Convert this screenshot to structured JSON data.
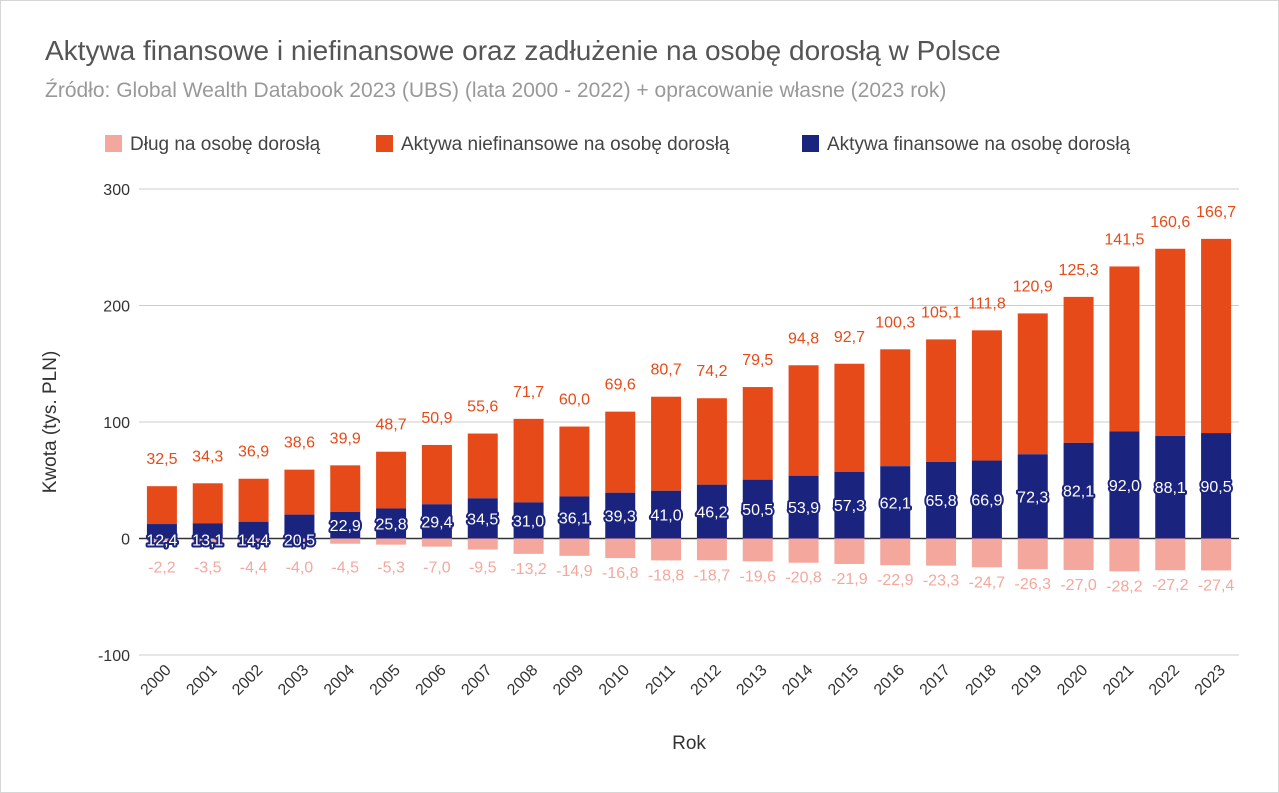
{
  "chart_data": {
    "type": "bar",
    "stacked": true,
    "title": "Aktywa finansowe i niefinansowe oraz zadłużenie na osobę dorosłą w Polsce",
    "subtitle": "Źródło: Global Wealth Databook 2023 (UBS) (lata 2000 - 2022) + opracowanie własne (2023 rok)",
    "xlabel": "Rok",
    "ylabel": "Kwota (tys. PLN)",
    "ylim": [
      -100,
      300
    ],
    "yticks": [
      300,
      200,
      100,
      0,
      -100
    ],
    "grid": true,
    "legend_position": "top",
    "categories": [
      "2000",
      "2001",
      "2002",
      "2003",
      "2004",
      "2005",
      "2006",
      "2007",
      "2008",
      "2009",
      "2010",
      "2011",
      "2012",
      "2013",
      "2014",
      "2015",
      "2016",
      "2017",
      "2018",
      "2019",
      "2020",
      "2021",
      "2022",
      "2023"
    ],
    "series": [
      {
        "name": "Dług na osobę dorosłą",
        "color": "#f4a79d",
        "values": [
          -2.2,
          -3.5,
          -4.4,
          -4.0,
          -4.5,
          -5.3,
          -7.0,
          -9.5,
          -13.2,
          -14.9,
          -16.8,
          -18.8,
          -18.7,
          -19.6,
          -20.8,
          -21.9,
          -22.9,
          -23.3,
          -24.7,
          -26.3,
          -27.0,
          -28.2,
          -27.2,
          -27.4
        ],
        "labels": [
          "-2,2",
          "-3,5",
          "-4,4",
          "-4,0",
          "-4,5",
          "-5,3",
          "-7,0",
          "-9,5",
          "-13,2",
          "-14,9",
          "-16,8",
          "-18,8",
          "-18,7",
          "-19,6",
          "-20,8",
          "-21,9",
          "-22,9",
          "-23,3",
          "-24,7",
          "-26,3",
          "-27,0",
          "-28,2",
          "-27,2",
          "-27,4"
        ]
      },
      {
        "name": "Aktywa niefinansowe na osobę dorosłą",
        "color": "#e64a19",
        "values": [
          32.5,
          34.3,
          36.9,
          38.6,
          39.9,
          48.7,
          50.9,
          55.6,
          71.7,
          60.0,
          69.6,
          80.7,
          74.2,
          79.5,
          94.8,
          92.7,
          100.3,
          105.1,
          111.8,
          120.9,
          125.3,
          141.5,
          160.6,
          166.7
        ],
        "labels": [
          "32,5",
          "34,3",
          "36,9",
          "38,6",
          "39,9",
          "48,7",
          "50,9",
          "55,6",
          "71,7",
          "60,0",
          "69,6",
          "80,7",
          "74,2",
          "79,5",
          "94,8",
          "92,7",
          "100,3",
          "105,1",
          "111,8",
          "120,9",
          "125,3",
          "141,5",
          "160,6",
          "166,7"
        ]
      },
      {
        "name": "Aktywa finansowe na osobę dorosłą",
        "color": "#1a237e",
        "values": [
          12.4,
          13.1,
          14.4,
          20.5,
          22.9,
          25.8,
          29.4,
          34.5,
          31.0,
          36.1,
          39.3,
          41.0,
          46.2,
          50.5,
          53.9,
          57.3,
          62.1,
          65.8,
          66.9,
          72.3,
          82.1,
          92.0,
          88.1,
          90.5
        ],
        "labels": [
          "12,4",
          "13,1",
          "14,4",
          "20,5",
          "22,9",
          "25,8",
          "29,4",
          "34,5",
          "31,0",
          "36,1",
          "39,3",
          "41,0",
          "46,2",
          "50,5",
          "53,9",
          "57,3",
          "62,1",
          "65,8",
          "66,9",
          "72,3",
          "82,1",
          "92,0",
          "88,1",
          "90,5"
        ]
      }
    ]
  }
}
